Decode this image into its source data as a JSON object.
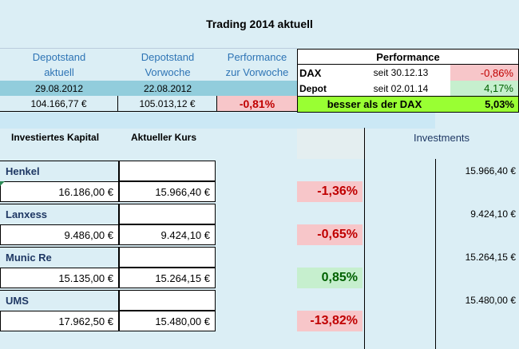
{
  "sheet": {
    "title": "Trading 2014 aktuell",
    "header": {
      "depot_current_l1": "Depotstand",
      "depot_current_l2": "aktuell",
      "depot_prev_l1": "Depotstand",
      "depot_prev_l2": "Vorwoche",
      "perf_week_l1": "Performance",
      "perf_week_l2": "zur Vorwoche",
      "date_current": "29.08.2012",
      "date_prev": "22.08.2012",
      "value_current": "104.166,77 €",
      "value_prev": "105.013,12 €",
      "perf_week_value": "-0,81%"
    },
    "performance_box": {
      "title": "Performance",
      "dax_label": "DAX",
      "dax_since": "seit 30.12.13",
      "dax_value": "-0,86%",
      "depot_label": "Depot",
      "depot_since": "seit 02.01.14",
      "depot_value": "4,17%",
      "better_label": "besser als der DAX",
      "better_value": "5,03%"
    },
    "columns": {
      "invested": "Investiertes Kapital",
      "current_price": "Aktueller Kurs",
      "investments": "Investments"
    },
    "positions": [
      {
        "name": "Henkel",
        "invested": "16.186,00 €",
        "current": "15.966,40 €",
        "perf": "-1,36%",
        "investment": "15.966,40 €"
      },
      {
        "name": "Lanxess",
        "invested": "9.486,00 €",
        "current": "9.424,10 €",
        "perf": "-0,65%",
        "investment": "9.424,10 €"
      },
      {
        "name": "Munic Re",
        "invested": "15.135,00 €",
        "current": "15.264,15 €",
        "perf": "0,85%",
        "investment": "15.264,15 €"
      },
      {
        "name": "UMS",
        "invested": "17.962,50 €",
        "current": "15.480,00 €",
        "perf": "-13,82%",
        "investment": "15.480,00 €"
      }
    ],
    "colors": {
      "negative_bg": "#f7c6c9",
      "negative_text": "#c00000",
      "positive_bg": "#c6efce",
      "positive_text": "#006100",
      "highlight_green": "#99ff33",
      "date_row_bg": "#92cddc",
      "cell_bg": "#ffffff"
    }
  }
}
